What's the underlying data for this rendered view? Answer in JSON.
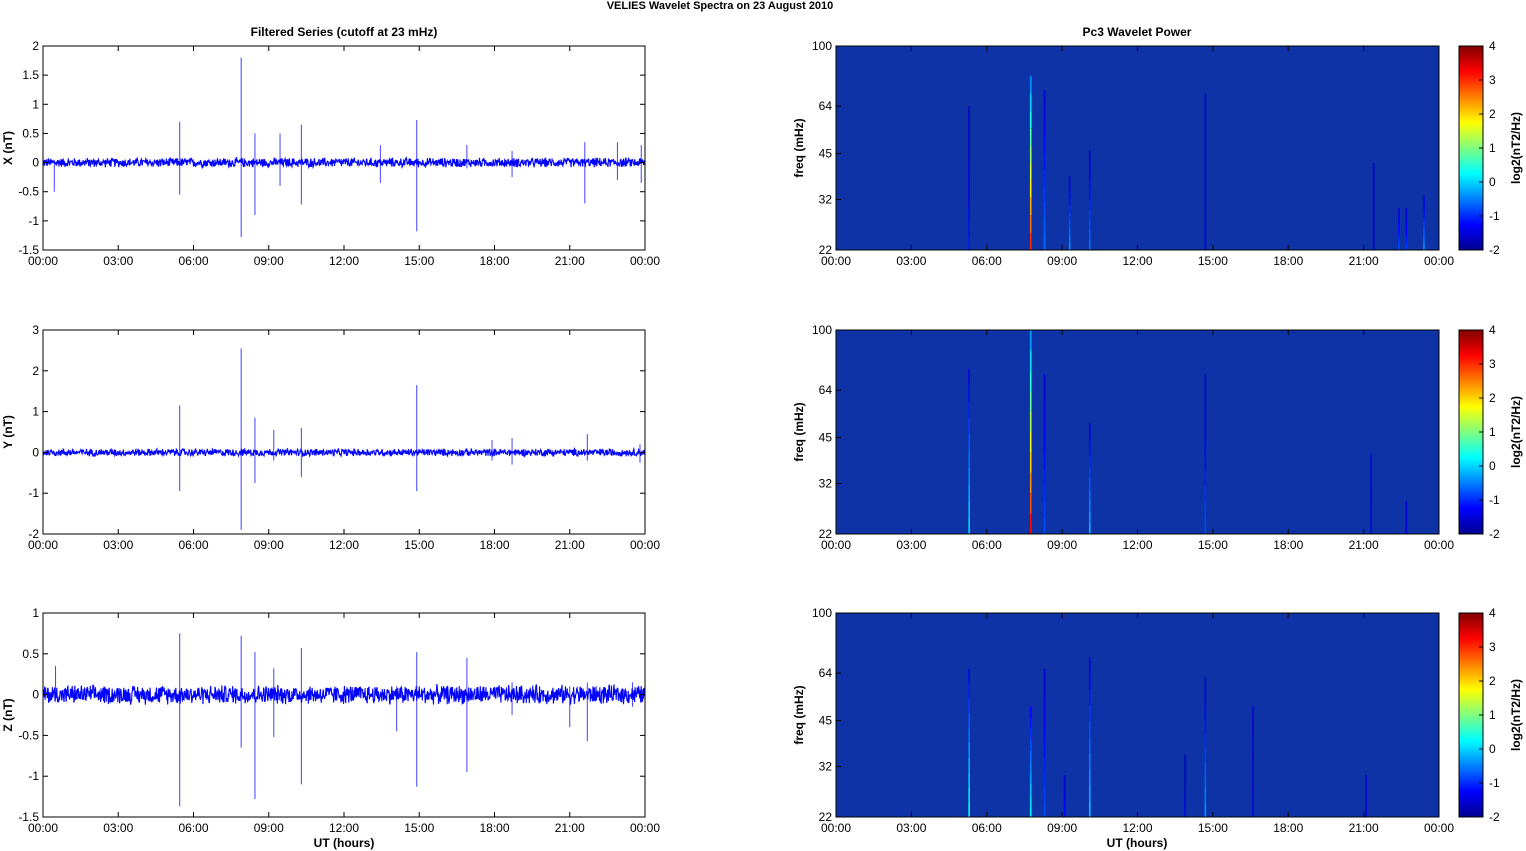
{
  "figure": {
    "suptitle": "VELIES Wavelet Spectra on 23 August    2010",
    "left_title": "Filtered Series (cutoff at 23 mHz)",
    "right_title": "Pc3 Wavelet Power",
    "xlabel": "UT (hours)",
    "freq_label": "freq (mHz)",
    "colorbar_label": "log2(nT2/Hz)"
  },
  "colors": {
    "trace": "#0000ff",
    "spec_background": "#0d33a6",
    "axes": "#000000"
  },
  "chart_data": [
    {
      "type": "line",
      "panel": "time-series",
      "ylabel": "X (nT)",
      "xlim": [
        0,
        24
      ],
      "ylim": [
        -1.5,
        2
      ],
      "x_ticks": [
        "00:00",
        "03:00",
        "06:00",
        "09:00",
        "12:00",
        "15:00",
        "18:00",
        "21:00",
        "00:00"
      ],
      "y_ticks": [
        "2",
        "1.5",
        "1",
        "0.5",
        "0",
        "-0.5",
        "-1",
        "-1.5"
      ],
      "noise_amplitude": 0.07,
      "spikes": [
        {
          "t": 0.45,
          "up": 0.05,
          "down": -0.5
        },
        {
          "t": 5.45,
          "up": 0.7,
          "down": -0.55
        },
        {
          "t": 7.9,
          "up": 1.8,
          "down": -1.28
        },
        {
          "t": 8.45,
          "up": 0.5,
          "down": -0.9
        },
        {
          "t": 9.45,
          "up": 0.5,
          "down": -0.4
        },
        {
          "t": 10.3,
          "up": 0.65,
          "down": -0.72
        },
        {
          "t": 13.45,
          "up": 0.3,
          "down": -0.35
        },
        {
          "t": 14.9,
          "up": 0.73,
          "down": -1.18
        },
        {
          "t": 16.9,
          "up": 0.3,
          "down": -0.1
        },
        {
          "t": 18.7,
          "up": 0.2,
          "down": -0.25
        },
        {
          "t": 21.6,
          "up": 0.35,
          "down": -0.7
        },
        {
          "t": 22.9,
          "up": 0.35,
          "down": -0.3
        },
        {
          "t": 23.85,
          "up": 0.3,
          "down": -0.35
        }
      ]
    },
    {
      "type": "heatmap",
      "panel": "spectrum",
      "ylabel": "freq (mHz)",
      "xlim": [
        0,
        24
      ],
      "ylim": [
        22,
        100
      ],
      "y_scale": "log",
      "x_ticks": [
        "00:00",
        "03:00",
        "06:00",
        "09:00",
        "12:00",
        "15:00",
        "18:00",
        "21:00",
        "00:00"
      ],
      "y_ticks": [
        100,
        64,
        45,
        32,
        22
      ],
      "colorbar_ticks": [
        "4",
        "3",
        "2",
        "1",
        "0",
        "-1",
        "-2"
      ],
      "clim": [
        -2,
        4
      ],
      "bursts": [
        {
          "t": 5.3,
          "fmax": 64,
          "level": -1.1
        },
        {
          "t": 7.75,
          "fmax": 80,
          "level": 3.0
        },
        {
          "t": 8.3,
          "fmax": 72,
          "level": -0.6
        },
        {
          "t": 9.3,
          "fmax": 38,
          "level": -0.4
        },
        {
          "t": 10.1,
          "fmax": 46,
          "level": -0.6
        },
        {
          "t": 14.7,
          "fmax": 70,
          "level": -1.4
        },
        {
          "t": 21.4,
          "fmax": 42,
          "level": -1.6
        },
        {
          "t": 22.4,
          "fmax": 30,
          "level": -0.8
        },
        {
          "t": 22.7,
          "fmax": 30,
          "level": -0.9
        },
        {
          "t": 23.4,
          "fmax": 33,
          "level": -0.4
        }
      ]
    },
    {
      "type": "line",
      "panel": "time-series",
      "ylabel": "Y (nT)",
      "xlim": [
        0,
        24
      ],
      "ylim": [
        -2,
        3
      ],
      "x_ticks": [
        "00:00",
        "03:00",
        "06:00",
        "09:00",
        "12:00",
        "15:00",
        "18:00",
        "21:00",
        "00:00"
      ],
      "y_ticks": [
        "3",
        "2",
        "1",
        "0",
        "-1",
        "-2"
      ],
      "noise_amplitude": 0.08,
      "spikes": [
        {
          "t": 5.45,
          "up": 1.15,
          "down": -0.95
        },
        {
          "t": 7.9,
          "up": 2.55,
          "down": -1.9
        },
        {
          "t": 8.45,
          "up": 0.85,
          "down": -0.75
        },
        {
          "t": 9.2,
          "up": 0.55,
          "down": -0.2
        },
        {
          "t": 10.3,
          "up": 0.6,
          "down": -0.6
        },
        {
          "t": 14.9,
          "up": 1.65,
          "down": -0.95
        },
        {
          "t": 17.9,
          "up": 0.3,
          "down": -0.2
        },
        {
          "t": 18.7,
          "up": 0.35,
          "down": -0.3
        },
        {
          "t": 21.7,
          "up": 0.45,
          "down": -0.2
        },
        {
          "t": 23.8,
          "up": 0.2,
          "down": -0.25
        }
      ]
    },
    {
      "type": "heatmap",
      "panel": "spectrum",
      "ylabel": "freq (mHz)",
      "xlim": [
        0,
        24
      ],
      "ylim": [
        22,
        100
      ],
      "y_scale": "log",
      "x_ticks": [
        "00:00",
        "03:00",
        "06:00",
        "09:00",
        "12:00",
        "15:00",
        "18:00",
        "21:00",
        "00:00"
      ],
      "y_ticks": [
        100,
        64,
        45,
        32,
        22
      ],
      "colorbar_ticks": [
        "4",
        "3",
        "2",
        "1",
        "0",
        "-1",
        "-2"
      ],
      "clim": [
        -2,
        4
      ],
      "bursts": [
        {
          "t": 5.3,
          "fmax": 75,
          "level": 0.0
        },
        {
          "t": 7.75,
          "fmax": 100,
          "level": 3.2
        },
        {
          "t": 8.3,
          "fmax": 72,
          "level": -0.8
        },
        {
          "t": 10.1,
          "fmax": 50,
          "level": -0.2
        },
        {
          "t": 14.7,
          "fmax": 72,
          "level": -0.8
        },
        {
          "t": 21.3,
          "fmax": 40,
          "level": -1.6
        },
        {
          "t": 22.7,
          "fmax": 28,
          "level": -1.7
        }
      ]
    },
    {
      "type": "line",
      "panel": "time-series",
      "ylabel": "Z (nT)",
      "xlim": [
        0,
        24
      ],
      "ylim": [
        -1.5,
        1
      ],
      "x_ticks": [
        "00:00",
        "03:00",
        "06:00",
        "09:00",
        "12:00",
        "15:00",
        "18:00",
        "21:00",
        "00:00"
      ],
      "y_ticks": [
        "1",
        "0.5",
        "0",
        "-0.5",
        "-1",
        "-1.5"
      ],
      "noise_amplitude": 0.1,
      "spikes": [
        {
          "t": 0.5,
          "up": 0.35,
          "down": -0.05
        },
        {
          "t": 5.45,
          "up": 0.75,
          "down": -1.37
        },
        {
          "t": 7.9,
          "up": 0.72,
          "down": -0.65
        },
        {
          "t": 8.45,
          "up": 0.52,
          "down": -1.28
        },
        {
          "t": 9.2,
          "up": 0.32,
          "down": -0.52
        },
        {
          "t": 10.3,
          "up": 0.57,
          "down": -1.1
        },
        {
          "t": 14.1,
          "up": 0.1,
          "down": -0.45
        },
        {
          "t": 14.9,
          "up": 0.52,
          "down": -1.13
        },
        {
          "t": 16.9,
          "up": 0.45,
          "down": -0.95
        },
        {
          "t": 18.7,
          "up": 0.15,
          "down": -0.25
        },
        {
          "t": 21.0,
          "up": 0.1,
          "down": -0.4
        },
        {
          "t": 21.7,
          "up": 0.15,
          "down": -0.57
        },
        {
          "t": 23.5,
          "up": 0.15,
          "down": -0.15
        }
      ]
    },
    {
      "type": "heatmap",
      "panel": "spectrum",
      "ylabel": "freq (mHz)",
      "xlim": [
        0,
        24
      ],
      "ylim": [
        22,
        100
      ],
      "y_scale": "log",
      "x_ticks": [
        "00:00",
        "03:00",
        "06:00",
        "09:00",
        "12:00",
        "15:00",
        "18:00",
        "21:00",
        "00:00"
      ],
      "y_ticks": [
        100,
        64,
        45,
        32,
        22
      ],
      "colorbar_ticks": [
        "4",
        "3",
        "2",
        "1",
        "0",
        "-1",
        "-2"
      ],
      "clim": [
        -2,
        4
      ],
      "bursts": [
        {
          "t": 5.3,
          "fmax": 66,
          "level": 0.3
        },
        {
          "t": 7.75,
          "fmax": 50,
          "level": 0.2
        },
        {
          "t": 8.3,
          "fmax": 66,
          "level": -0.8
        },
        {
          "t": 9.1,
          "fmax": 30,
          "level": -1.2
        },
        {
          "t": 10.1,
          "fmax": 72,
          "level": -0.1
        },
        {
          "t": 13.9,
          "fmax": 35,
          "level": -1.3
        },
        {
          "t": 14.7,
          "fmax": 62,
          "level": -0.4
        },
        {
          "t": 16.6,
          "fmax": 50,
          "level": -1.4
        },
        {
          "t": 21.1,
          "fmax": 30,
          "level": -1.8
        }
      ]
    }
  ]
}
